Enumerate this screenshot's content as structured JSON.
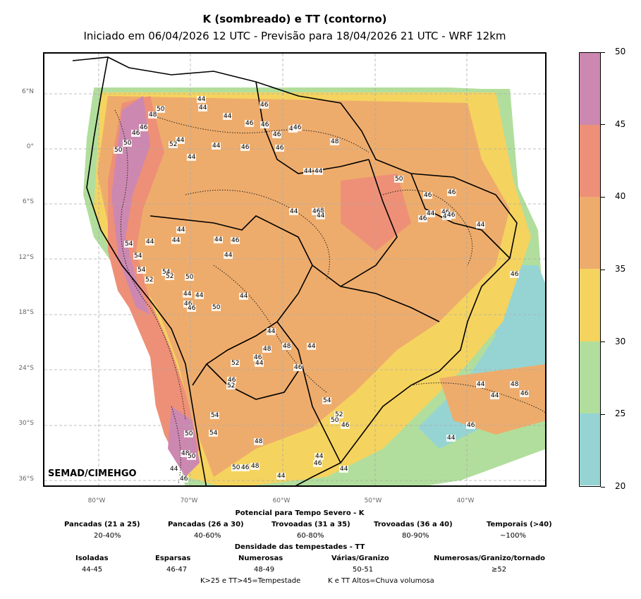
{
  "title": "K (sombreado) e TT (contorno)",
  "subtitle": "Iniciado em 06/04/2026 12 UTC - Previsão para 18/04/2026 21 UTC - WRF 12km",
  "credit": "SEMAD/CIMEHGO",
  "lat_labels": [
    "6°N",
    "0°",
    "6°S",
    "12°S",
    "18°S",
    "24°S",
    "30°S",
    "36°S"
  ],
  "lon_labels": [
    "80°W",
    "70°W",
    "60°W",
    "50°W",
    "40°W"
  ],
  "colorbar": {
    "ticks": [
      "50",
      "45",
      "40",
      "35",
      "30",
      "25",
      "20"
    ],
    "colors": [
      "#cc88b0",
      "#ee9077",
      "#eeac6c",
      "#f5d35f",
      "#b1de9c",
      "#96d4d4"
    ]
  },
  "legend": {
    "k_title": "Potencial para Tempo Severo - K",
    "k_items": [
      {
        "label": "Pancadas (21 a 25)",
        "value": "20-40%"
      },
      {
        "label": "Pancadas (26 a 30)",
        "value": "40-60%"
      },
      {
        "label": "Trovoadas (31 a 35)",
        "value": "60-80%"
      },
      {
        "label": "Trovoadas (36 a 40)",
        "value": "80-90%"
      },
      {
        "label": "Temporais (>40)",
        "value": "~100%"
      }
    ],
    "tt_title": "Densidade das tempestades - TT",
    "tt_items": [
      {
        "label": "Isoladas",
        "value": "44-45"
      },
      {
        "label": "Esparsas",
        "value": "46-47"
      },
      {
        "label": "Numerosas",
        "value": "48-49"
      },
      {
        "label": "Várias/Granizo",
        "value": "50-51"
      },
      {
        "label": "Numerosas/Granizo/tornado",
        "value": "≥52"
      }
    ],
    "footer_left": "K>25 e TT>45=Tempestade",
    "footer_right": "K e TT Altos=Chuva volumosa"
  },
  "contour_labels": [
    "44",
    "44",
    "46",
    "44",
    "46",
    "46",
    "46",
    "50",
    "48",
    "46",
    "44",
    "46",
    "50",
    "50",
    "52",
    "44",
    "44",
    "46",
    "44",
    "46",
    "46",
    "44",
    "44",
    "48",
    "50",
    "48",
    "44",
    "46",
    "44",
    "46",
    "46",
    "46",
    "44",
    "46",
    "44",
    "46",
    "46",
    "46",
    "44",
    "44",
    "44",
    "44",
    "46",
    "44",
    "54",
    "54",
    "54",
    "54",
    "52",
    "52",
    "50",
    "44",
    "44",
    "46",
    "46",
    "50",
    "44",
    "44",
    "48",
    "48",
    "44",
    "46",
    "44",
    "46",
    "52",
    "46",
    "52",
    "54",
    "54",
    "50",
    "48",
    "54",
    "52",
    "50",
    "44",
    "48",
    "44",
    "46",
    "48",
    "50",
    "50",
    "46",
    "44",
    "46",
    "44",
    "46",
    "44",
    "44",
    "48",
    "46",
    "46",
    "44"
  ]
}
